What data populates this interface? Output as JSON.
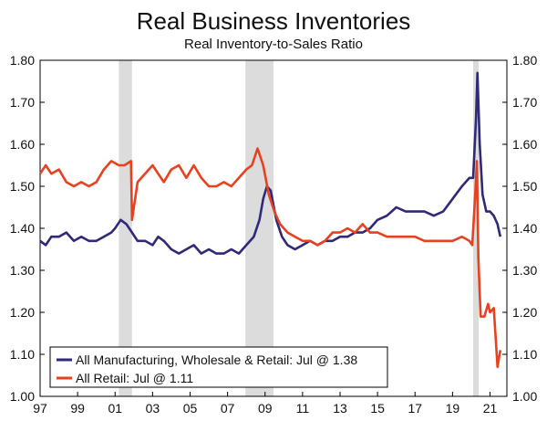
{
  "chart_data": {
    "type": "line",
    "title": "Real Business Inventories",
    "subtitle": "Real Inventory-to-Sales Ratio",
    "xlabel": "",
    "ylabel": "",
    "xlim": [
      1997.0,
      2021.9
    ],
    "ylim": [
      1.0,
      1.8
    ],
    "y_ticks": [
      "1.00",
      "1.10",
      "1.20",
      "1.30",
      "1.40",
      "1.50",
      "1.60",
      "1.70",
      "1.80"
    ],
    "x_ticks": [
      "97",
      "99",
      "01",
      "03",
      "05",
      "07",
      "09",
      "11",
      "13",
      "15",
      "17",
      "19",
      "21"
    ],
    "x_tick_values": [
      1997,
      1999,
      2001,
      2003,
      2005,
      2007,
      2009,
      2011,
      2013,
      2015,
      2017,
      2019,
      2021
    ],
    "recessions": [
      [
        2001.2,
        2001.9
      ],
      [
        2007.95,
        2009.45
      ],
      [
        2020.1,
        2020.4
      ]
    ],
    "grid": false,
    "legend_position": "bottom-left",
    "series": [
      {
        "name": "All Manufacturing, Wholesale & Retail: Jul @ 1.38",
        "color": "#2e2a78",
        "points": [
          [
            1997.0,
            1.37
          ],
          [
            1997.3,
            1.36
          ],
          [
            1997.6,
            1.38
          ],
          [
            1998.0,
            1.38
          ],
          [
            1998.4,
            1.39
          ],
          [
            1998.8,
            1.37
          ],
          [
            1999.2,
            1.38
          ],
          [
            1999.6,
            1.37
          ],
          [
            2000.0,
            1.37
          ],
          [
            2000.4,
            1.38
          ],
          [
            2000.8,
            1.39
          ],
          [
            2001.0,
            1.4
          ],
          [
            2001.3,
            1.42
          ],
          [
            2001.6,
            1.41
          ],
          [
            2001.9,
            1.39
          ],
          [
            2002.2,
            1.37
          ],
          [
            2002.6,
            1.37
          ],
          [
            2003.0,
            1.36
          ],
          [
            2003.3,
            1.38
          ],
          [
            2003.6,
            1.37
          ],
          [
            2004.0,
            1.35
          ],
          [
            2004.4,
            1.34
          ],
          [
            2004.8,
            1.35
          ],
          [
            2005.2,
            1.36
          ],
          [
            2005.6,
            1.34
          ],
          [
            2006.0,
            1.35
          ],
          [
            2006.4,
            1.34
          ],
          [
            2006.8,
            1.34
          ],
          [
            2007.2,
            1.35
          ],
          [
            2007.6,
            1.34
          ],
          [
            2008.0,
            1.36
          ],
          [
            2008.4,
            1.38
          ],
          [
            2008.7,
            1.42
          ],
          [
            2008.9,
            1.47
          ],
          [
            2009.1,
            1.5
          ],
          [
            2009.3,
            1.49
          ],
          [
            2009.6,
            1.42
          ],
          [
            2009.9,
            1.38
          ],
          [
            2010.2,
            1.36
          ],
          [
            2010.6,
            1.35
          ],
          [
            2011.0,
            1.36
          ],
          [
            2011.4,
            1.37
          ],
          [
            2011.8,
            1.36
          ],
          [
            2012.2,
            1.37
          ],
          [
            2012.6,
            1.37
          ],
          [
            2013.0,
            1.38
          ],
          [
            2013.4,
            1.38
          ],
          [
            2013.8,
            1.39
          ],
          [
            2014.2,
            1.39
          ],
          [
            2014.6,
            1.4
          ],
          [
            2015.0,
            1.42
          ],
          [
            2015.5,
            1.43
          ],
          [
            2016.0,
            1.45
          ],
          [
            2016.5,
            1.44
          ],
          [
            2017.0,
            1.44
          ],
          [
            2017.5,
            1.44
          ],
          [
            2018.0,
            1.43
          ],
          [
            2018.5,
            1.44
          ],
          [
            2019.0,
            1.47
          ],
          [
            2019.5,
            1.5
          ],
          [
            2019.9,
            1.52
          ],
          [
            2020.1,
            1.52
          ],
          [
            2020.25,
            1.66
          ],
          [
            2020.33,
            1.77
          ],
          [
            2020.45,
            1.6
          ],
          [
            2020.6,
            1.48
          ],
          [
            2020.8,
            1.44
          ],
          [
            2021.0,
            1.44
          ],
          [
            2021.2,
            1.43
          ],
          [
            2021.4,
            1.41
          ],
          [
            2021.55,
            1.38
          ]
        ]
      },
      {
        "name": "All Retail: Jul @ 1.11",
        "color": "#e8411e",
        "points": [
          [
            1997.0,
            1.53
          ],
          [
            1997.3,
            1.55
          ],
          [
            1997.6,
            1.53
          ],
          [
            1998.0,
            1.54
          ],
          [
            1998.4,
            1.51
          ],
          [
            1998.8,
            1.5
          ],
          [
            1999.2,
            1.51
          ],
          [
            1999.6,
            1.5
          ],
          [
            2000.0,
            1.51
          ],
          [
            2000.4,
            1.54
          ],
          [
            2000.8,
            1.56
          ],
          [
            2001.2,
            1.55
          ],
          [
            2001.5,
            1.55
          ],
          [
            2001.85,
            1.56
          ],
          [
            2001.9,
            1.42
          ],
          [
            2002.2,
            1.51
          ],
          [
            2002.6,
            1.53
          ],
          [
            2003.0,
            1.55
          ],
          [
            2003.3,
            1.53
          ],
          [
            2003.6,
            1.51
          ],
          [
            2004.0,
            1.54
          ],
          [
            2004.4,
            1.55
          ],
          [
            2004.8,
            1.52
          ],
          [
            2005.2,
            1.55
          ],
          [
            2005.6,
            1.52
          ],
          [
            2006.0,
            1.5
          ],
          [
            2006.4,
            1.5
          ],
          [
            2006.8,
            1.51
          ],
          [
            2007.2,
            1.5
          ],
          [
            2007.6,
            1.52
          ],
          [
            2008.0,
            1.54
          ],
          [
            2008.3,
            1.55
          ],
          [
            2008.6,
            1.59
          ],
          [
            2008.9,
            1.55
          ],
          [
            2009.2,
            1.48
          ],
          [
            2009.5,
            1.44
          ],
          [
            2009.8,
            1.41
          ],
          [
            2010.2,
            1.39
          ],
          [
            2010.6,
            1.38
          ],
          [
            2011.0,
            1.37
          ],
          [
            2011.4,
            1.37
          ],
          [
            2011.8,
            1.36
          ],
          [
            2012.2,
            1.37
          ],
          [
            2012.6,
            1.39
          ],
          [
            2013.0,
            1.39
          ],
          [
            2013.4,
            1.4
          ],
          [
            2013.8,
            1.39
          ],
          [
            2014.2,
            1.41
          ],
          [
            2014.6,
            1.39
          ],
          [
            2015.0,
            1.39
          ],
          [
            2015.5,
            1.38
          ],
          [
            2016.0,
            1.38
          ],
          [
            2016.5,
            1.38
          ],
          [
            2017.0,
            1.38
          ],
          [
            2017.5,
            1.37
          ],
          [
            2018.0,
            1.37
          ],
          [
            2018.5,
            1.37
          ],
          [
            2019.0,
            1.37
          ],
          [
            2019.5,
            1.38
          ],
          [
            2019.9,
            1.37
          ],
          [
            2020.05,
            1.36
          ],
          [
            2020.2,
            1.47
          ],
          [
            2020.3,
            1.56
          ],
          [
            2020.38,
            1.33
          ],
          [
            2020.5,
            1.19
          ],
          [
            2020.7,
            1.19
          ],
          [
            2020.9,
            1.22
          ],
          [
            2021.0,
            1.2
          ],
          [
            2021.2,
            1.21
          ],
          [
            2021.3,
            1.14
          ],
          [
            2021.4,
            1.07
          ],
          [
            2021.55,
            1.11
          ]
        ]
      }
    ]
  }
}
